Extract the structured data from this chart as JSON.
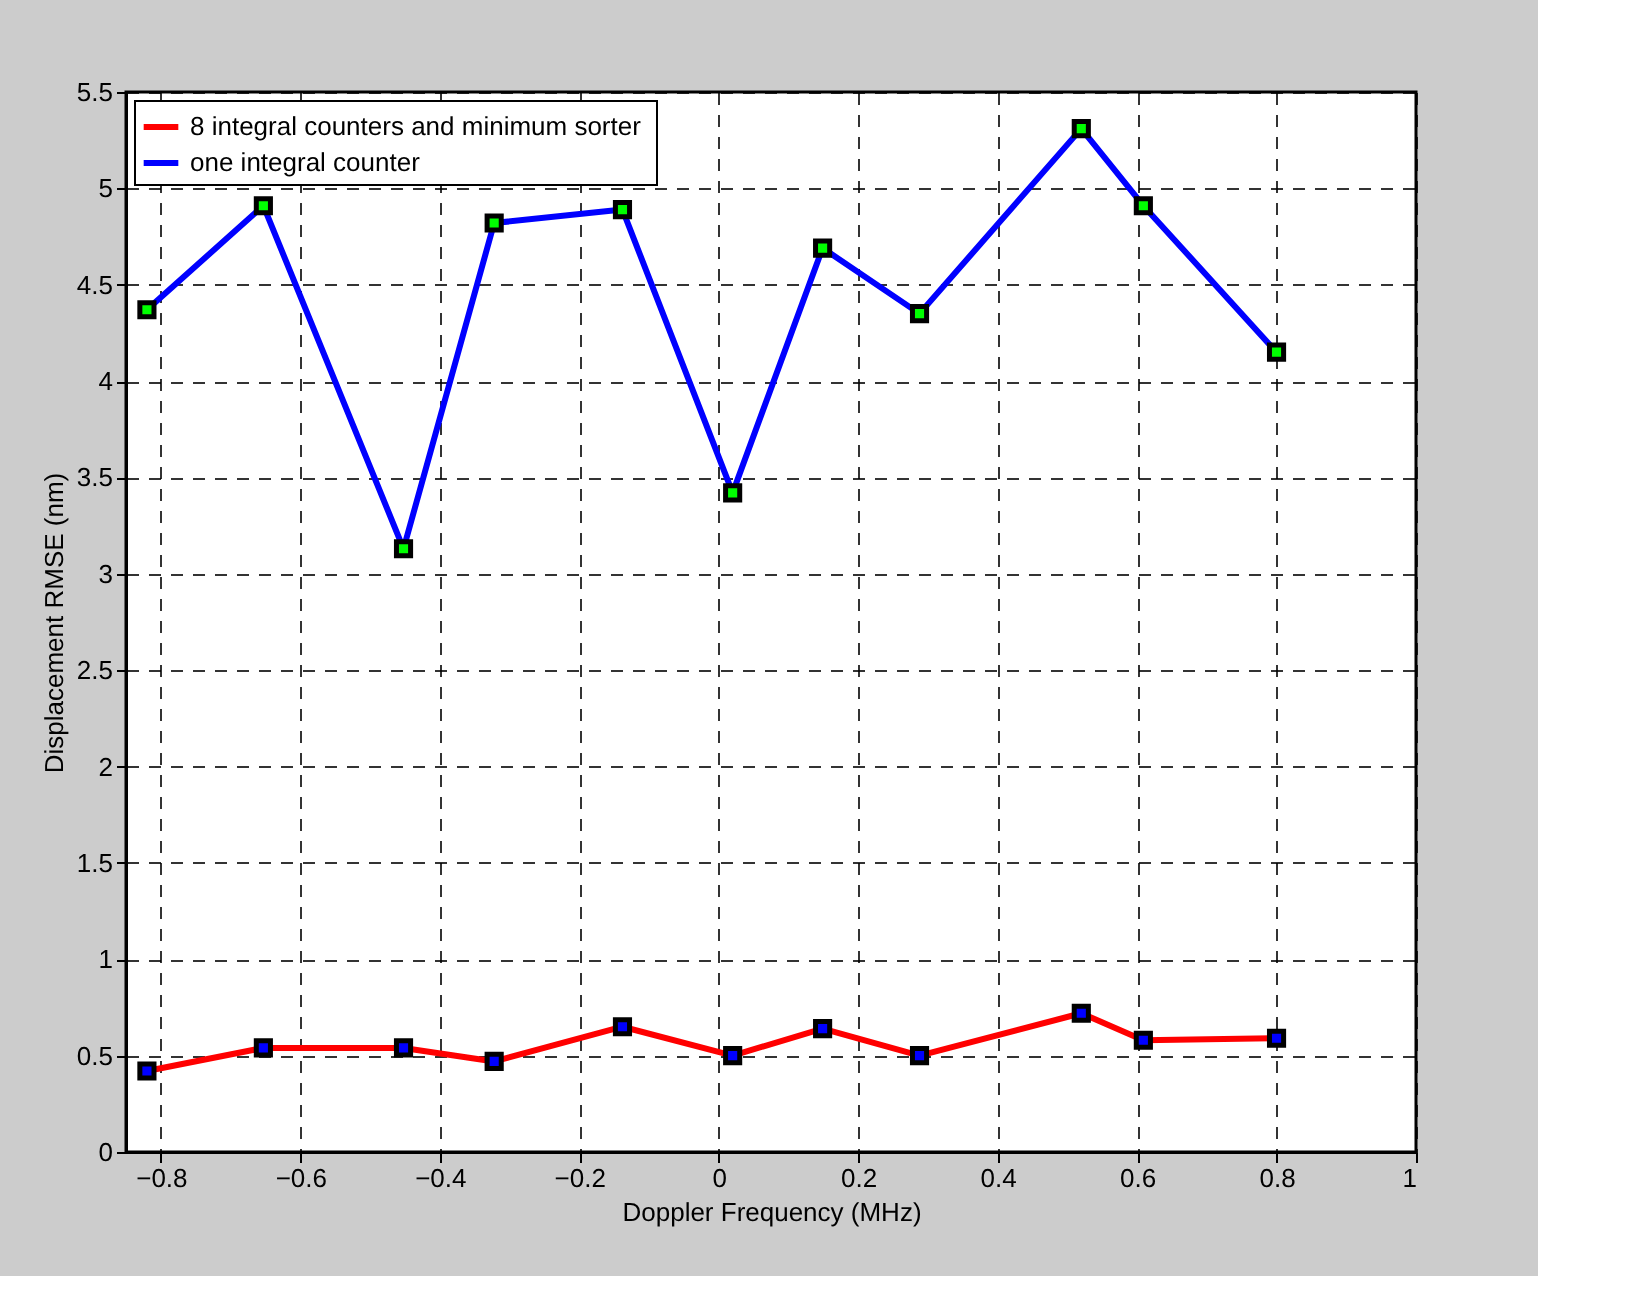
{
  "chart_data": {
    "type": "line",
    "xlabel": "Doppler Frequency (MHz)",
    "ylabel": "Displacement RMSE (nm)",
    "x": [
      -0.82,
      -0.653,
      -0.452,
      -0.322,
      -0.138,
      0.02,
      0.149,
      0.288,
      0.52,
      0.609,
      0.8
    ],
    "series": [
      {
        "name": "8  integral counters and minimum sorter",
        "color": "#ff0000",
        "values": [
          0.42,
          0.54,
          0.54,
          0.47,
          0.65,
          0.5,
          0.64,
          0.5,
          0.72,
          0.58,
          0.59
        ]
      },
      {
        "name": "one integral counter",
        "color": "#0000ff",
        "values": [
          4.37,
          4.91,
          3.13,
          4.82,
          4.89,
          3.42,
          4.69,
          4.35,
          5.31,
          4.91,
          4.15
        ]
      }
    ],
    "xlim": [
      -0.85,
      1
    ],
    "xticks": [
      -0.8,
      -0.6,
      -0.4,
      -0.2,
      0,
      0.2,
      0.4,
      0.6,
      0.8,
      1
    ],
    "ylim": [
      0,
      5.5
    ],
    "yticks": [
      0,
      0.5,
      1,
      1.5,
      2,
      2.5,
      3,
      3.5,
      4,
      4.5,
      5,
      5.5
    ],
    "grid": true,
    "legend": "top left",
    "marker": "square",
    "line_style": "solid"
  }
}
